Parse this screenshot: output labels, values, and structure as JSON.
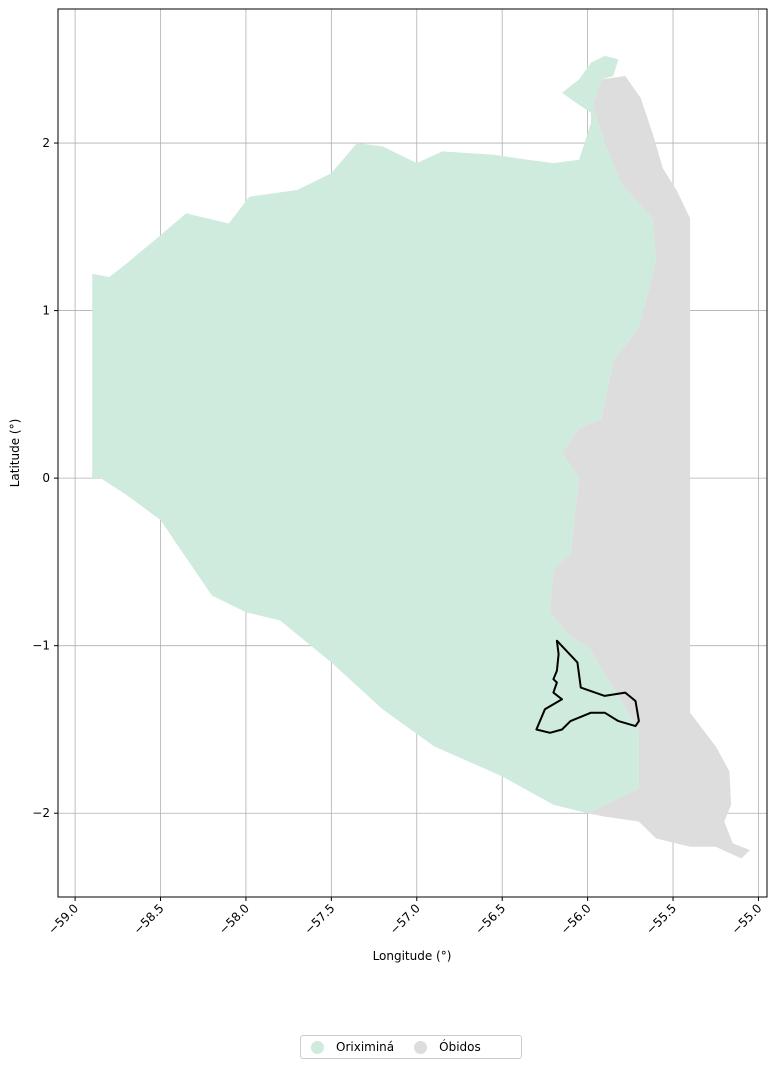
{
  "map": {
    "xlabel": "Longitude (°)",
    "ylabel": "Latitude (°)",
    "xlim": [
      -59.1,
      -54.95
    ],
    "ylim": [
      -2.5,
      2.8
    ],
    "grid": true,
    "x_ticks": [
      -59.0,
      -58.5,
      -58.0,
      -57.5,
      -57.0,
      -56.5,
      -56.0,
      -55.5,
      -55.0
    ],
    "x_tick_labels": [
      "−59.0",
      "−58.5",
      "−58.0",
      "−57.5",
      "−57.0",
      "−56.5",
      "−56.0",
      "−55.5",
      "−55.0"
    ],
    "y_ticks": [
      2,
      1,
      0,
      -1,
      -2
    ],
    "y_tick_labels": [
      "2",
      "1",
      "0",
      "−1",
      "−2"
    ],
    "legend": {
      "placement": "bottom-center",
      "items": [
        {
          "label": "Oriximiná",
          "color": "#cfebde"
        },
        {
          "label": "Óbidos",
          "color": "#dddddd"
        }
      ]
    },
    "regions": {
      "obidos": {
        "name": "Óbidos",
        "color": "#dddddd",
        "outline_lonlat": [
          [
            -55.92,
            2.38
          ],
          [
            -55.78,
            2.4
          ],
          [
            -55.69,
            2.27
          ],
          [
            -55.62,
            2.06
          ],
          [
            -55.56,
            1.85
          ],
          [
            -55.48,
            1.72
          ],
          [
            -55.4,
            1.55
          ],
          [
            -55.4,
            1.0
          ],
          [
            -55.4,
            0.4
          ],
          [
            -55.4,
            -0.4
          ],
          [
            -55.4,
            -1.4
          ],
          [
            -55.25,
            -1.6
          ],
          [
            -55.17,
            -1.75
          ],
          [
            -55.16,
            -1.95
          ],
          [
            -55.2,
            -2.05
          ],
          [
            -55.15,
            -2.18
          ],
          [
            -55.05,
            -2.22
          ],
          [
            -55.1,
            -2.27
          ],
          [
            -55.25,
            -2.2
          ],
          [
            -55.4,
            -2.2
          ],
          [
            -55.6,
            -2.15
          ],
          [
            -55.7,
            -2.05
          ],
          [
            -55.9,
            -2.02
          ],
          [
            -56.0,
            -2.0
          ],
          [
            -55.7,
            -1.85
          ],
          [
            -55.7,
            -1.5
          ],
          [
            -56.0,
            -1.0
          ],
          [
            -56.1,
            -0.95
          ],
          [
            -56.22,
            -0.8
          ],
          [
            -56.2,
            -0.55
          ],
          [
            -56.1,
            -0.45
          ],
          [
            -56.05,
            0.0
          ],
          [
            -56.15,
            0.15
          ],
          [
            -56.05,
            0.3
          ],
          [
            -55.92,
            0.35
          ],
          [
            -55.85,
            0.7
          ],
          [
            -55.7,
            0.9
          ],
          [
            -55.6,
            1.3
          ],
          [
            -55.62,
            1.55
          ],
          [
            -55.8,
            1.75
          ],
          [
            -55.9,
            2.0
          ],
          [
            -55.97,
            2.22
          ]
        ]
      },
      "oriximina": {
        "name": "Oriximiná",
        "color": "#cfebde",
        "outline_lonlat": [
          [
            -58.9,
            0.0
          ],
          [
            -58.9,
            1.22
          ],
          [
            -58.8,
            1.2
          ],
          [
            -58.7,
            1.28
          ],
          [
            -58.5,
            1.45
          ],
          [
            -58.35,
            1.58
          ],
          [
            -58.1,
            1.52
          ],
          [
            -57.98,
            1.68
          ],
          [
            -57.7,
            1.72
          ],
          [
            -57.5,
            1.82
          ],
          [
            -57.35,
            2.0
          ],
          [
            -57.2,
            1.98
          ],
          [
            -57.0,
            1.88
          ],
          [
            -56.85,
            1.95
          ],
          [
            -56.55,
            1.93
          ],
          [
            -56.35,
            1.9
          ],
          [
            -56.2,
            1.88
          ],
          [
            -56.05,
            1.9
          ],
          [
            -55.98,
            2.12
          ],
          [
            -55.98,
            2.18
          ],
          [
            -56.08,
            2.25
          ],
          [
            -56.15,
            2.3
          ],
          [
            -56.05,
            2.38
          ],
          [
            -55.98,
            2.48
          ],
          [
            -55.9,
            2.52
          ],
          [
            -55.82,
            2.5
          ],
          [
            -55.85,
            2.4
          ],
          [
            -55.92,
            2.38
          ],
          [
            -55.97,
            2.22
          ],
          [
            -55.9,
            2.0
          ],
          [
            -55.8,
            1.75
          ],
          [
            -55.62,
            1.55
          ],
          [
            -55.6,
            1.3
          ],
          [
            -55.7,
            0.9
          ],
          [
            -55.85,
            0.7
          ],
          [
            -55.92,
            0.35
          ],
          [
            -56.05,
            0.3
          ],
          [
            -56.15,
            0.15
          ],
          [
            -56.05,
            0.0
          ],
          [
            -56.1,
            -0.45
          ],
          [
            -56.2,
            -0.55
          ],
          [
            -56.22,
            -0.8
          ],
          [
            -56.1,
            -0.95
          ],
          [
            -56.0,
            -1.0
          ],
          [
            -55.7,
            -1.5
          ],
          [
            -55.7,
            -1.85
          ],
          [
            -56.0,
            -2.0
          ],
          [
            -56.2,
            -1.95
          ],
          [
            -56.5,
            -1.78
          ],
          [
            -56.9,
            -1.6
          ],
          [
            -57.2,
            -1.38
          ],
          [
            -57.5,
            -1.1
          ],
          [
            -57.8,
            -0.85
          ],
          [
            -58.0,
            -0.8
          ],
          [
            -58.2,
            -0.7
          ],
          [
            -58.4,
            -0.4
          ],
          [
            -58.5,
            -0.25
          ],
          [
            -58.7,
            -0.1
          ],
          [
            -58.85,
            0.0
          ]
        ]
      },
      "highlight": {
        "stroke": "#000000",
        "outline_lonlat": [
          [
            -56.18,
            -0.97
          ],
          [
            -56.06,
            -1.1
          ],
          [
            -56.04,
            -1.25
          ],
          [
            -55.9,
            -1.3
          ],
          [
            -55.78,
            -1.28
          ],
          [
            -55.72,
            -1.33
          ],
          [
            -55.7,
            -1.45
          ],
          [
            -55.72,
            -1.48
          ],
          [
            -55.82,
            -1.45
          ],
          [
            -55.9,
            -1.4
          ],
          [
            -55.98,
            -1.4
          ],
          [
            -56.1,
            -1.45
          ],
          [
            -56.15,
            -1.5
          ],
          [
            -56.22,
            -1.52
          ],
          [
            -56.3,
            -1.5
          ],
          [
            -56.25,
            -1.38
          ],
          [
            -56.15,
            -1.32
          ],
          [
            -56.2,
            -1.28
          ],
          [
            -56.18,
            -1.22
          ],
          [
            -56.2,
            -1.2
          ],
          [
            -56.18,
            -1.15
          ],
          [
            -56.17,
            -1.05
          ]
        ]
      }
    }
  }
}
